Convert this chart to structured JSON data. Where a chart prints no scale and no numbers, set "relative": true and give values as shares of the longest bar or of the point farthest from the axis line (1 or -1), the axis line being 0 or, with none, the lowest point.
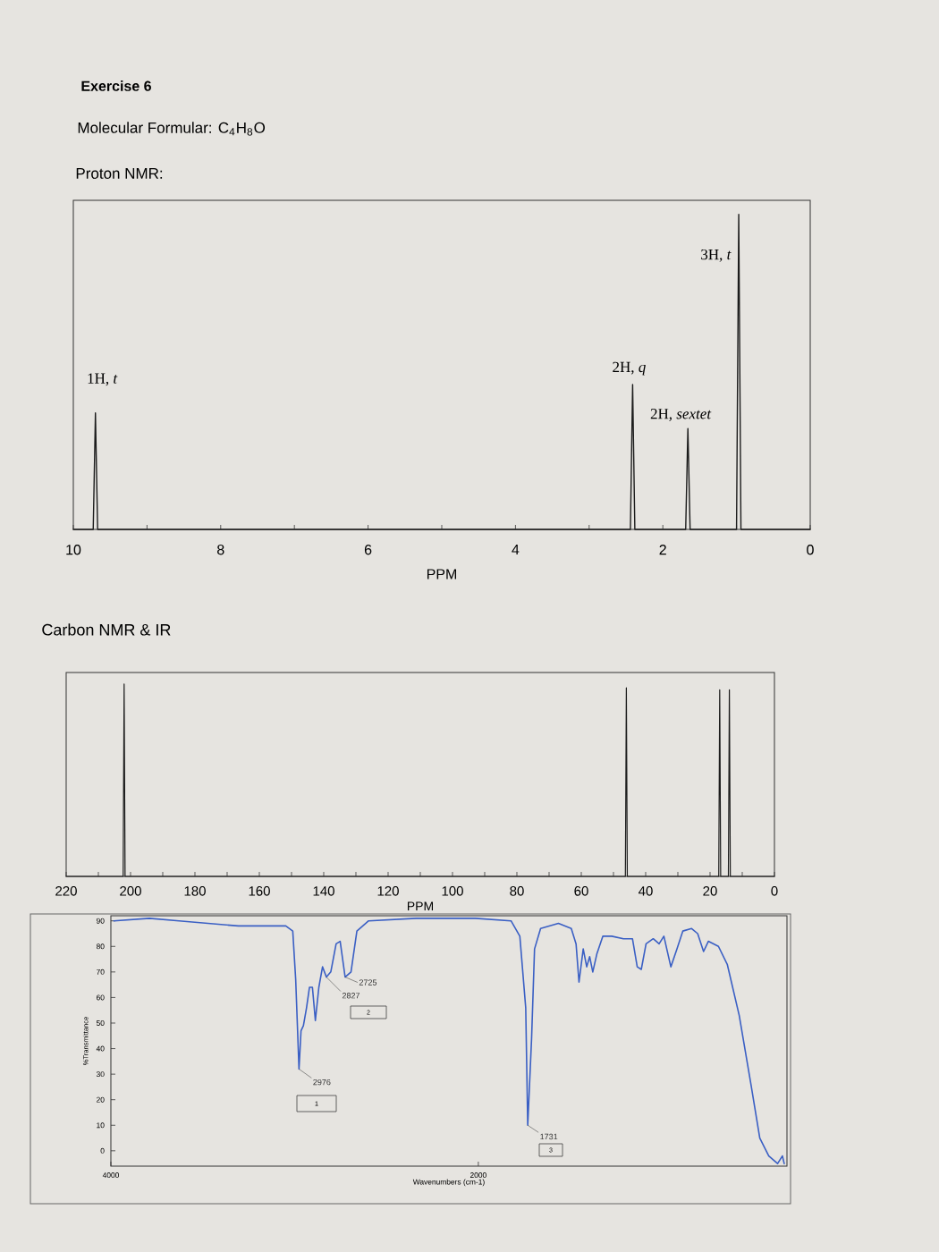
{
  "chart_data": [
    {
      "type": "line",
      "title": "Exercise 6",
      "subtitle": "Molecular Formular: C$_{4}$H$_{8}$O",
      "xlabel": "PPM",
      "relative": true,
      "color": "#1c1c1c",
      "x": [
        10,
        9.73,
        9.7,
        9.67,
        2.44,
        2.41,
        2.38,
        1.69,
        1.66,
        1.63,
        1,
        0.97,
        0.94,
        0
      ],
      "values": [
        0,
        0,
        0.37,
        0,
        0,
        0.46,
        0,
        0,
        0.32,
        0,
        0,
        1,
        0,
        0
      ],
      "xlim": [
        10,
        0
      ],
      "xticks": [
        10,
        {
          "value": 9,
          "label": null
        },
        8,
        {
          "value": 7,
          "label": null
        },
        6,
        {
          "value": 5,
          "label": null
        },
        4,
        {
          "value": 3,
          "label": null
        },
        2,
        {
          "value": 1,
          "label": null
        },
        0
      ],
      "annotations": [
        "Proton NMR:",
        {
          "text": "1H, *t*",
          "x": 9.7,
          "y": 0.37
        },
        {
          "text": "2H, *q*",
          "x": 2.41,
          "y": 0.46
        },
        {
          "text": "2H, *sextet*",
          "x": 1.66,
          "y": 0.32
        },
        {
          "text": "3H, *t*",
          "x": 0.97,
          "y": 1
        }
      ]
    },
    {
      "type": "line",
      "title": "Carbon NMR & IR",
      "xlabel": "PPM",
      "relative": true,
      "color": "#1c1c1c",
      "x": [
        220,
        202.3,
        202,
        201.7,
        46.3,
        46,
        45.7,
        17.3,
        17,
        16.7,
        14.3,
        14,
        13.7,
        0
      ],
      "values": [
        0,
        0,
        1,
        0,
        0,
        0.98,
        0,
        0,
        0.97,
        0,
        0,
        0.97,
        0,
        0
      ],
      "xlim": [
        220,
        0
      ],
      "xticks": [
        220,
        {
          "value": 210,
          "label": null
        },
        200,
        {
          "value": 190,
          "label": null
        },
        180,
        {
          "value": 170,
          "label": null
        },
        160,
        {
          "value": 150,
          "label": null
        },
        140,
        {
          "value": 130,
          "label": null
        },
        120,
        {
          "value": 110,
          "label": null
        },
        100,
        {
          "value": 90,
          "label": null
        },
        80,
        {
          "value": 70,
          "label": null
        },
        60,
        {
          "value": 50,
          "label": null
        },
        40,
        {
          "value": 30,
          "label": null
        },
        20,
        {
          "value": 10,
          "label": null
        },
        0
      ]
    },
    {
      "type": "line",
      "xlabel": "Wavenumbers (cm-1)",
      "ylabel": "%Transmittance",
      "color": "#3a5fc4",
      "x": [
        3984,
        3790,
        3629,
        3306,
        3048,
        3010,
        2994,
        2976,
        2965,
        2952,
        2935,
        2919,
        2903,
        2887,
        2868,
        2848,
        2827,
        2803,
        2774,
        2752,
        2725,
        2693,
        2661,
        2597,
        2339,
        2016,
        1822,
        1774,
        1742,
        1731,
        1710,
        1694,
        1661,
        1564,
        1494,
        1468,
        1452,
        1429,
        1410,
        1394,
        1377,
        1355,
        1322,
        1274,
        1210,
        1161,
        1135,
        1113,
        1087,
        1048,
        1016,
        990,
        952,
        919,
        887,
        839,
        806,
        774,
        748,
        693,
        645,
        580,
        516,
        468,
        419,
        371,
        345,
        335
      ],
      "values": [
        90,
        91,
        90,
        88,
        88,
        86,
        67,
        32,
        47,
        49,
        56,
        64,
        64,
        51,
        64,
        72,
        68,
        70,
        81,
        82,
        68,
        70,
        86,
        90,
        91,
        91,
        90,
        84,
        56,
        10,
        44,
        79,
        87,
        89,
        87,
        81,
        66,
        79,
        72,
        76,
        70,
        77,
        84,
        84,
        83,
        83,
        72,
        71,
        81,
        83,
        81,
        84,
        72,
        79,
        86,
        87,
        85,
        78,
        82,
        80,
        73,
        53,
        26,
        5,
        -2,
        -5,
        -2,
        -5
      ],
      "xlim": [
        4000,
        320
      ],
      "ylim": [
        -6,
        92
      ],
      "xticks": [
        4000,
        2000
      ],
      "yticks": [
        0,
        10,
        20,
        30,
        40,
        50,
        60,
        70,
        80,
        90
      ],
      "annotations": [
        {
          "text": "2976",
          "x": 2976,
          "y": 32
        },
        {
          "text": "2827",
          "x": 2827,
          "y": 68
        },
        {
          "text": "2725",
          "x": 2725,
          "y": 68
        },
        {
          "text": "1731",
          "x": 1731,
          "y": 10
        },
        "1",
        "2",
        "3"
      ]
    }
  ]
}
